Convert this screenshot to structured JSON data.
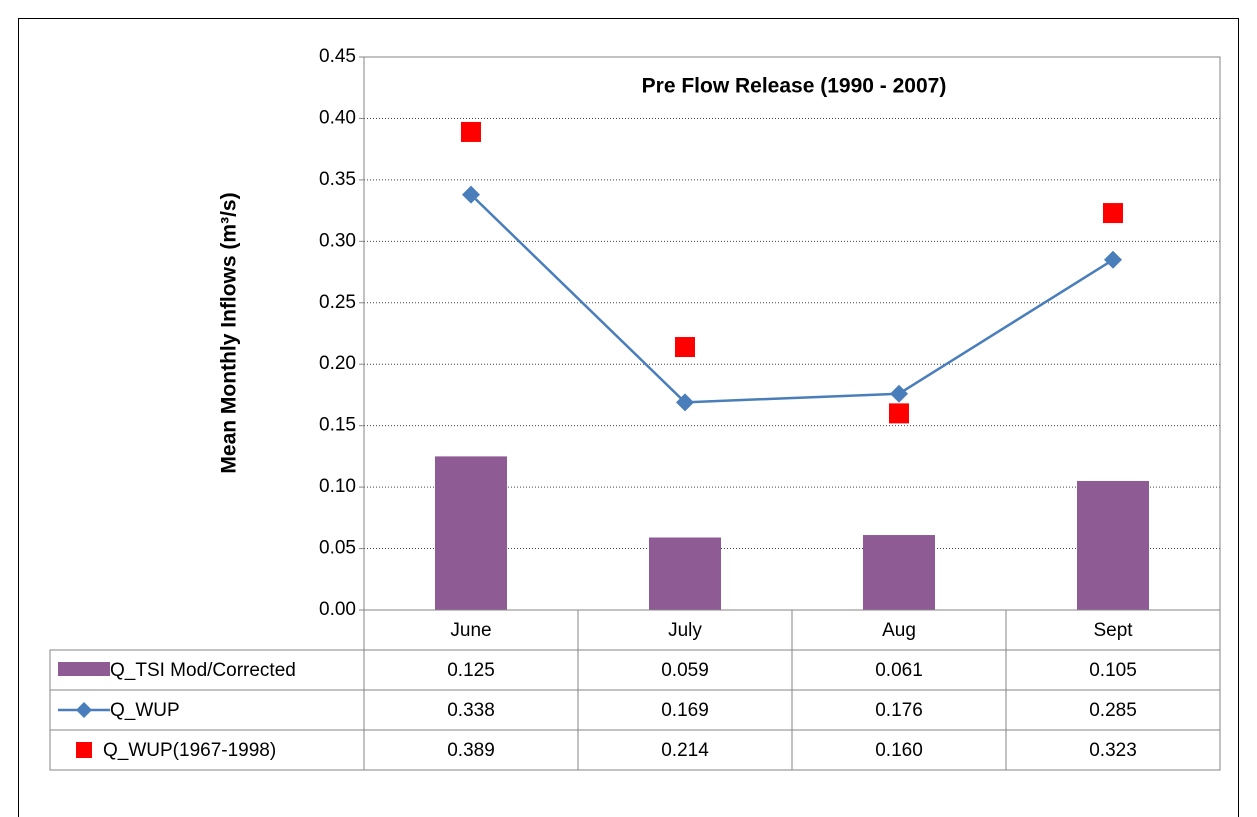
{
  "chart_data": {
    "type": "bar",
    "title": "Pre Flow Release (1990 - 2007)",
    "y_label": "Mean Monthly Inflows (m³/s)",
    "categories": [
      "June",
      "July",
      "Aug",
      "Sept"
    ],
    "series": [
      {
        "name": "Q_TSI Mod/Corrected",
        "type": "bar",
        "color": "#8e5b95",
        "values": [
          0.125,
          0.059,
          0.061,
          0.105
        ]
      },
      {
        "name": "Q_WUP",
        "type": "line",
        "color": "#4a7ebb",
        "values": [
          0.338,
          0.169,
          0.176,
          0.285
        ]
      },
      {
        "name": "Q_WUP(1967-1998)",
        "type": "scatter",
        "color": "#ff0000",
        "values": [
          0.389,
          0.214,
          0.16,
          0.323
        ],
        "value_labels": [
          "0.389",
          "0.214",
          "0.160",
          "0.323"
        ]
      }
    ],
    "ylim": [
      0,
      0.45
    ],
    "yticks": [
      {
        "value": 0,
        "label": "0.00"
      },
      0.05,
      {
        "value": 0.1,
        "label": "0.10"
      },
      0.15,
      {
        "value": 0.2,
        "label": "0.20"
      },
      0.25,
      {
        "value": 0.3,
        "label": "0.30"
      },
      0.35,
      {
        "value": 0.4,
        "label": "0.40"
      },
      0.45
    ],
    "grid": true,
    "data_table": true
  }
}
